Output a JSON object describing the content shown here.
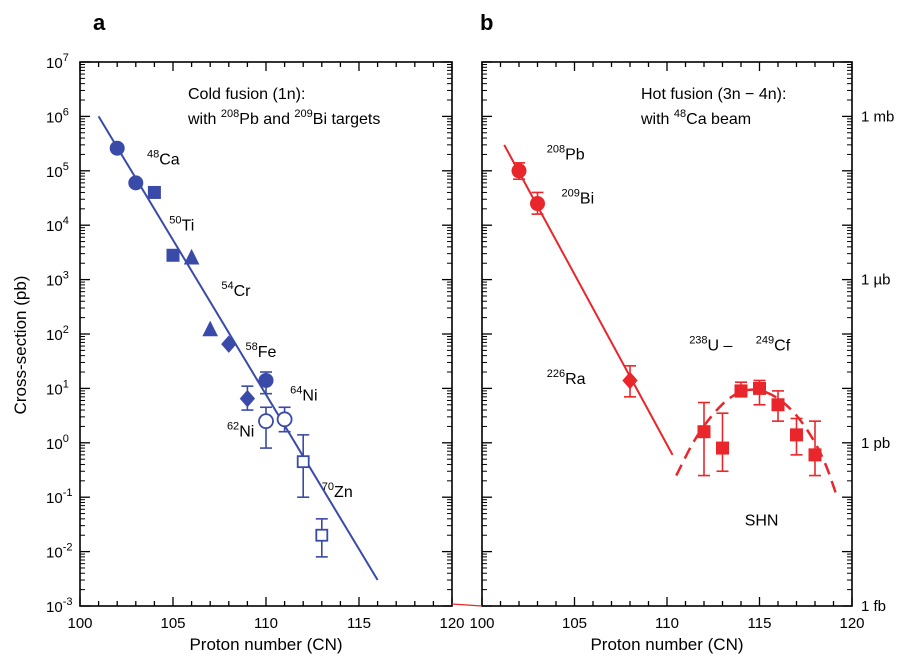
{
  "figure": {
    "panels": [
      "a",
      "b"
    ],
    "shared_ylabel": "Cross-section (pb)",
    "right_axis_labels": [
      "1 mb",
      "1 µb",
      "1 pb",
      "1 fb"
    ]
  },
  "chart_data": [
    {
      "panel": "a",
      "type": "scatter",
      "title": "Cold fusion (1n): with 208Pb and 209Bi targets",
      "title_lines": [
        {
          "parts": [
            {
              "t": "Cold fusion (1n):"
            }
          ]
        },
        {
          "parts": [
            {
              "t": "with "
            },
            {
              "t": "208",
              "sup": true
            },
            {
              "t": "Pb and "
            },
            {
              "t": "209",
              "sup": true
            },
            {
              "t": "Bi targets"
            }
          ]
        }
      ],
      "xlabel": "Proton number (CN)",
      "ylabel": "Cross-section (pb)",
      "xlim": [
        100,
        120
      ],
      "ylim": [
        0.001,
        10000000
      ],
      "yscale": "log",
      "x_ticks": [
        100,
        105,
        110,
        115,
        120
      ],
      "y_ticks": [
        "10^-3",
        "10^-2",
        "10^-1",
        "10^0",
        "10^1",
        "10^2",
        "10^3",
        "10^4",
        "10^5",
        "10^6",
        "10^7"
      ],
      "color": "#3a4aa8",
      "fit_line": {
        "x": [
          101,
          116
        ],
        "y": [
          1000000,
          0.003
        ]
      },
      "series": [
        {
          "marker": "circle",
          "filled": true,
          "points": [
            [
              102,
              260000,
              null,
              null
            ],
            [
              103,
              60000,
              null,
              null
            ],
            [
              110,
              14,
              8,
              20
            ]
          ]
        },
        {
          "marker": "square",
          "filled": true,
          "points": [
            [
              104,
              40000,
              null,
              null
            ],
            [
              105,
              2800,
              null,
              null
            ]
          ]
        },
        {
          "marker": "triangle",
          "filled": true,
          "points": [
            [
              106,
              2500,
              null,
              null
            ],
            [
              107,
              120,
              null,
              null
            ]
          ]
        },
        {
          "marker": "diamond",
          "filled": true,
          "points": [
            [
              108,
              65,
              null,
              null
            ],
            [
              109,
              6.5,
              4.0,
              11
            ]
          ]
        },
        {
          "marker": "circle",
          "filled": false,
          "points": [
            [
              110,
              2.5,
              0.8,
              4.5
            ],
            [
              111,
              2.7,
              1.6,
              4.5
            ]
          ]
        },
        {
          "marker": "square",
          "filled": false,
          "points": [
            [
              112,
              0.45,
              0.1,
              1.4
            ],
            [
              113,
              0.02,
              0.008,
              0.04
            ]
          ]
        }
      ],
      "annotations": [
        {
          "sup": "48",
          "text": "Ca",
          "x": 103.6,
          "y": 130000
        },
        {
          "sup": "50",
          "text": "Ti",
          "x": 104.8,
          "y": 8000
        },
        {
          "sup": "54",
          "text": "Cr",
          "x": 107.6,
          "y": 500
        },
        {
          "sup": "58",
          "text": "Fe",
          "x": 108.9,
          "y": 38
        },
        {
          "sup": "64",
          "text": "Ni",
          "x": 111.3,
          "y": 6
        },
        {
          "sup": "62",
          "text": "Ni",
          "x": 107.9,
          "y": 1.3
        },
        {
          "sup": "70",
          "text": "Zn",
          "x": 113.0,
          "y": 0.1
        }
      ]
    },
    {
      "panel": "b",
      "type": "scatter",
      "title": "Hot fusion (3n − 4n): with 48Ca beam",
      "title_lines": [
        {
          "parts": [
            {
              "t": "Hot fusion (3n − 4n):"
            }
          ]
        },
        {
          "parts": [
            {
              "t": "with "
            },
            {
              "t": "48",
              "sup": true
            },
            {
              "t": "Ca beam"
            }
          ]
        }
      ],
      "xlabel": "Proton number (CN)",
      "xlim": [
        100,
        120
      ],
      "ylim": [
        0.001,
        10000000
      ],
      "yscale": "log",
      "x_ticks": [
        100,
        105,
        110,
        115,
        120
      ],
      "y2_ticks": [
        {
          "label": "1 mb",
          "y": 1000000000
        },
        {
          "label": "1 µb",
          "y": 1000000
        },
        {
          "label": "1 pb",
          "y": 1
        },
        {
          "label": "1 fb",
          "y": 0.001
        }
      ],
      "color": "#e8262b",
      "fit_line": {
        "x": [
          101.2,
          110.3
        ],
        "y": [
          300000,
          0.6
        ]
      },
      "trend_curve": {
        "style": "dashed",
        "x": [
          110.5,
          111.5,
          112.5,
          113.5,
          114.5,
          115.5,
          116.5,
          117.5,
          118.5,
          119.2
        ],
        "y": [
          0.25,
          1.2,
          3.5,
          7.5,
          10,
          8.5,
          5,
          2,
          0.5,
          0.1
        ]
      },
      "series": [
        {
          "marker": "circle",
          "filled": true,
          "points": [
            [
              102,
              100000,
              70000,
              140000
            ],
            [
              103,
              25000,
              16000,
              40000
            ]
          ]
        },
        {
          "marker": "diamond",
          "filled": true,
          "points": [
            [
              108,
              14,
              7,
              26
            ]
          ]
        },
        {
          "marker": "square",
          "filled": true,
          "points": [
            [
              112,
              1.6,
              0.25,
              5.5
            ],
            [
              113,
              0.8,
              0.3,
              3.5
            ],
            [
              114,
              9,
              7,
              13
            ],
            [
              115,
              10,
              5,
              14
            ],
            [
              116,
              5,
              2.5,
              9
            ],
            [
              117,
              1.4,
              0.6,
              2.8
            ],
            [
              118,
              0.6,
              0.25,
              2.5
            ]
          ]
        }
      ],
      "annotations": [
        {
          "sup": "208",
          "text": "Pb",
          "x": 103.5,
          "y": 160000
        },
        {
          "sup": "209",
          "text": "Bi",
          "x": 104.3,
          "y": 25000
        },
        {
          "sup": "226",
          "text": "Ra",
          "x": 103.5,
          "y": 12
        },
        {
          "sup": "238",
          "text": "U  –  ",
          "x": 111.2,
          "y": 50
        },
        {
          "sup": "249",
          "text": "Cf",
          "x": 114.8,
          "y": 50
        },
        {
          "sup": "",
          "text": "SHN",
          "x": 114.2,
          "y": 0.03
        }
      ]
    }
  ]
}
